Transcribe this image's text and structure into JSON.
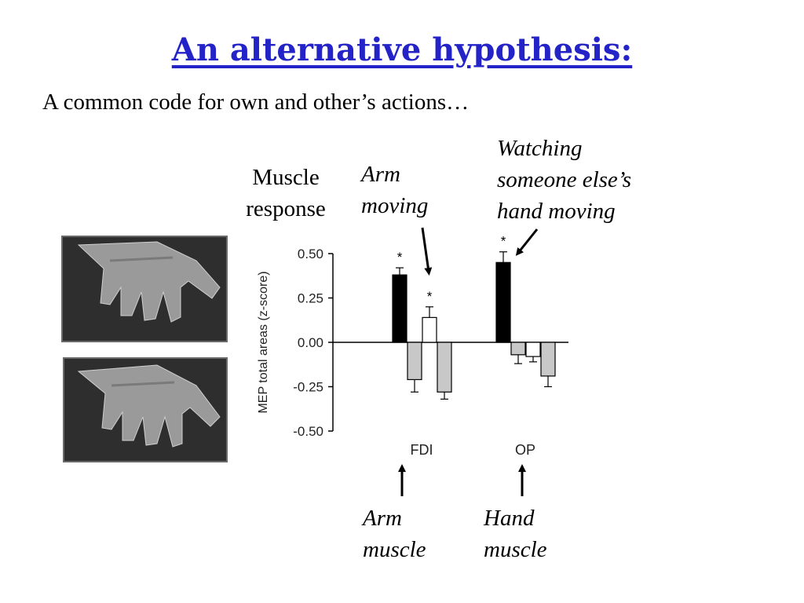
{
  "slide": {
    "title": "An alternative hypothesis:",
    "subtitle": "A common code for own and other’s actions…"
  },
  "annotations": {
    "muscle_response": [
      "Muscle",
      "response"
    ],
    "arm_moving": [
      "Arm",
      "moving"
    ],
    "watching": [
      "Watching",
      "someone else’s",
      "hand moving"
    ],
    "arm_muscle": [
      "Arm",
      "muscle"
    ],
    "hand_muscle": [
      "Hand",
      "muscle"
    ]
  },
  "colors": {
    "title": "#2323c8",
    "black_bar": "#000000",
    "white_bar": "#ffffff",
    "gray_bar": "#c8c8c8"
  },
  "chart_data": {
    "type": "bar",
    "ylabel": "MEP total areas (z-score)",
    "ylim": [
      -0.5,
      0.5
    ],
    "yticks": [
      "0.50",
      "0.25",
      "0.00",
      "-0.25",
      "-0.50"
    ],
    "ytick_values": [
      0.5,
      0.25,
      0.0,
      -0.25,
      -0.5
    ],
    "categories": [
      "FDI",
      "OP"
    ],
    "groups": [
      {
        "category": "FDI",
        "bars": [
          {
            "fill": "black",
            "value": 0.38,
            "error": 0.04,
            "significant": true,
            "marker": "*"
          },
          {
            "fill": "gray",
            "value": -0.21,
            "error": 0.07,
            "significant": false,
            "marker": ""
          },
          {
            "fill": "white",
            "value": 0.14,
            "error": 0.06,
            "significant": true,
            "marker": "*"
          },
          {
            "fill": "gray",
            "value": -0.28,
            "error": 0.04,
            "significant": false,
            "marker": ""
          }
        ]
      },
      {
        "category": "OP",
        "bars": [
          {
            "fill": "black",
            "value": 0.45,
            "error": 0.06,
            "significant": true,
            "marker": "*"
          },
          {
            "fill": "gray",
            "value": -0.07,
            "error": 0.05,
            "significant": false,
            "marker": ""
          },
          {
            "fill": "white",
            "value": -0.08,
            "error": 0.03,
            "significant": false,
            "marker": ""
          },
          {
            "fill": "gray",
            "value": -0.19,
            "error": 0.06,
            "significant": false,
            "marker": ""
          }
        ]
      }
    ]
  }
}
